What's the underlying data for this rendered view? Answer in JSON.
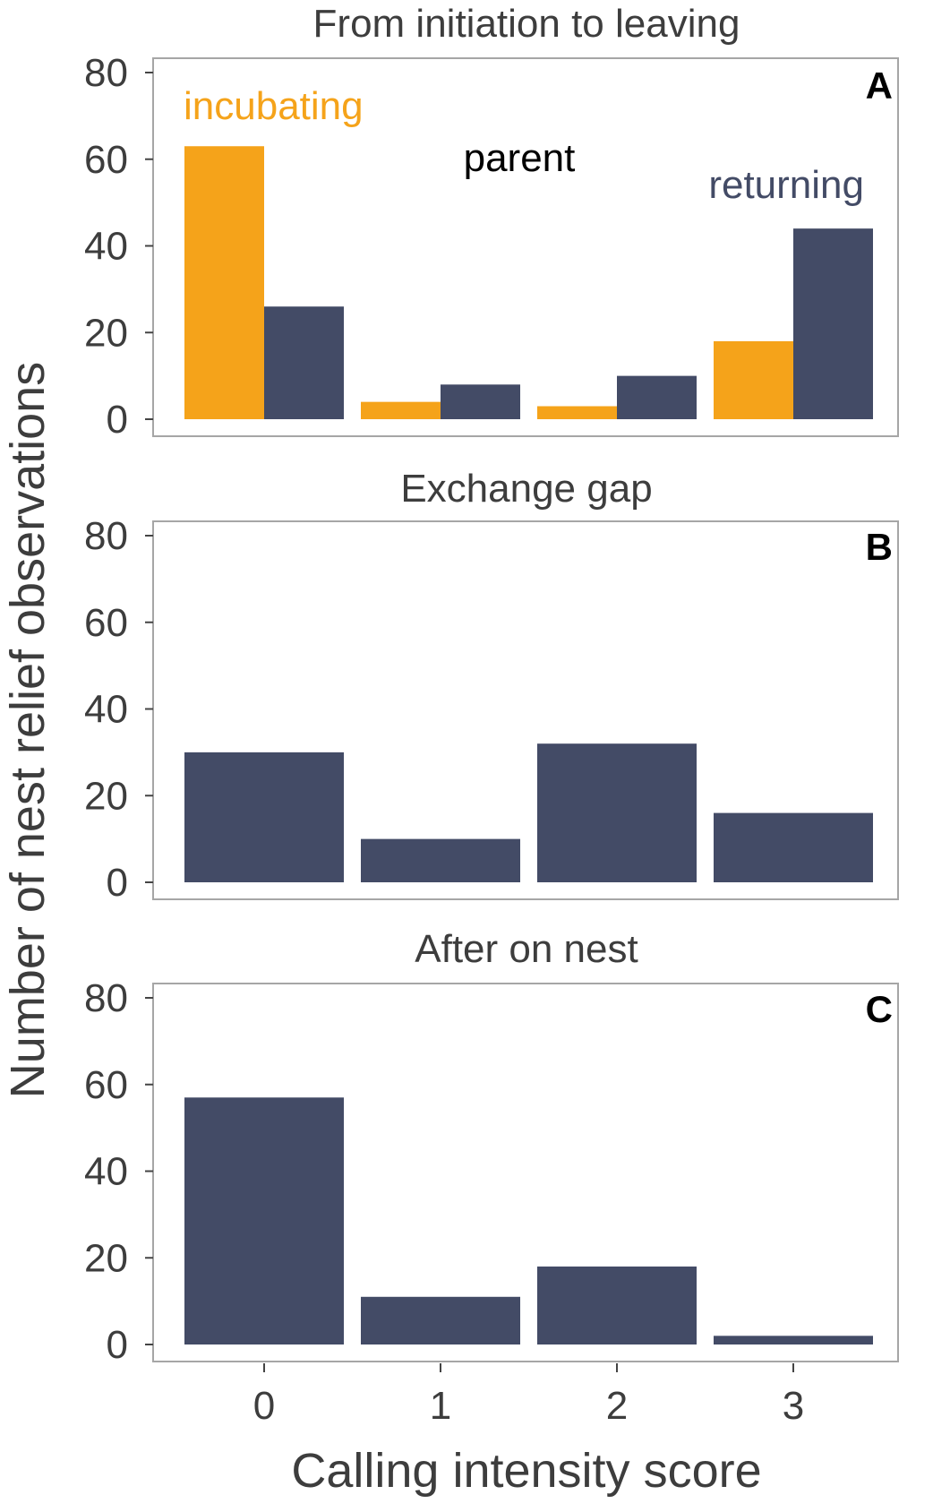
{
  "colors": {
    "incubating": "#f5a31a",
    "returning": "#434b66",
    "legend_title": "#000000",
    "text": "#3d3d3d",
    "frame": "#a6a6a6"
  },
  "chart_data": {
    "type": "bar",
    "xlabel": "Calling intensity score",
    "ylabel": "Number of nest relief observations",
    "categories": [
      "0",
      "1",
      "2",
      "3"
    ],
    "ylim": [
      0,
      80
    ],
    "yticks": [
      "0",
      "20",
      "40",
      "60",
      "80"
    ],
    "grid": false,
    "legend": {
      "title": "parent",
      "placement": "inside panel A",
      "entries": [
        "incubating",
        "returning"
      ]
    },
    "panels": [
      {
        "letter": "A",
        "title": "From initiation to leaving",
        "series": [
          {
            "name": "incubating",
            "values": [
              63,
              4,
              3,
              18
            ]
          },
          {
            "name": "returning",
            "values": [
              26,
              8,
              10,
              44
            ]
          }
        ]
      },
      {
        "letter": "B",
        "title": "Exchange gap",
        "series": [
          {
            "values": [
              30,
              10,
              32,
              16
            ]
          }
        ]
      },
      {
        "letter": "C",
        "title": "After on nest",
        "series": [
          {
            "values": [
              57,
              11,
              18,
              2
            ]
          }
        ]
      }
    ]
  }
}
